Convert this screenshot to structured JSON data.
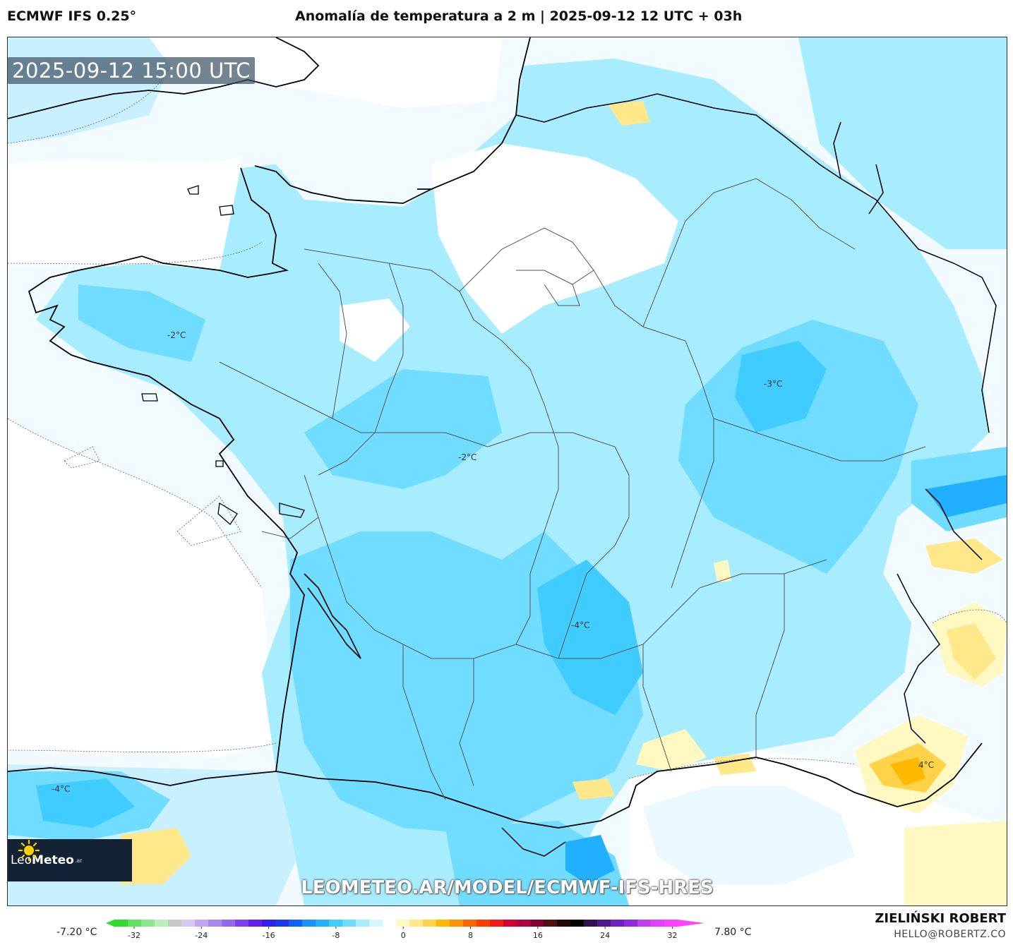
{
  "header": {
    "model": "ECMWF IFS 0.25°",
    "title": "Anomalía de temperatura a 2 m | 2025-09-12 12 UTC + 03h"
  },
  "map": {
    "valid_time": "2025-09-12 15:00 UTC",
    "watermark": "LEOMETEO.AR/MODEL/ECMWF-IFS-HRES",
    "logo": {
      "name": "LeoMeteo",
      "name_regular": "Leo",
      "name_bold": "Meteo",
      "tld": ".ar"
    },
    "contour_labels": [
      "-2°C",
      "-3°C",
      "-2°C",
      "-4°C",
      "-4°C",
      "4°C"
    ]
  },
  "colorbar": {
    "min_label": "-7.20 °C",
    "max_label": "7.80 °C",
    "ticks": [
      "-32",
      "-24",
      "-16",
      "-8",
      "0",
      "8",
      "16",
      "24",
      "32"
    ],
    "colors": [
      "#2ddc2d",
      "#5fe35f",
      "#8ce88c",
      "#b9edb9",
      "#c8c8c8",
      "#d8c8f0",
      "#c0a8f0",
      "#a888f0",
      "#9068f0",
      "#7a40f0",
      "#6020f0",
      "#3020f0",
      "#1838f0",
      "#1060ff",
      "#1890ff",
      "#20b0ff",
      "#40ccff",
      "#70dcff",
      "#a8ecff",
      "#d8f6ff",
      "#ffffff",
      "#fff8c0",
      "#ffe88a",
      "#ffd24a",
      "#ffb800",
      "#ff9000",
      "#ff6400",
      "#ff3c00",
      "#f01818",
      "#d40030",
      "#b00040",
      "#800030",
      "#501010",
      "#200808",
      "#000000",
      "#301050",
      "#501890",
      "#7020c0",
      "#9028e0",
      "#c040f0",
      "#e040ff",
      "#ff40ff"
    ]
  },
  "credits": {
    "author": "ZIELIŃSKI ROBERT",
    "email": "HELLO@ROBERTZ.CO"
  }
}
